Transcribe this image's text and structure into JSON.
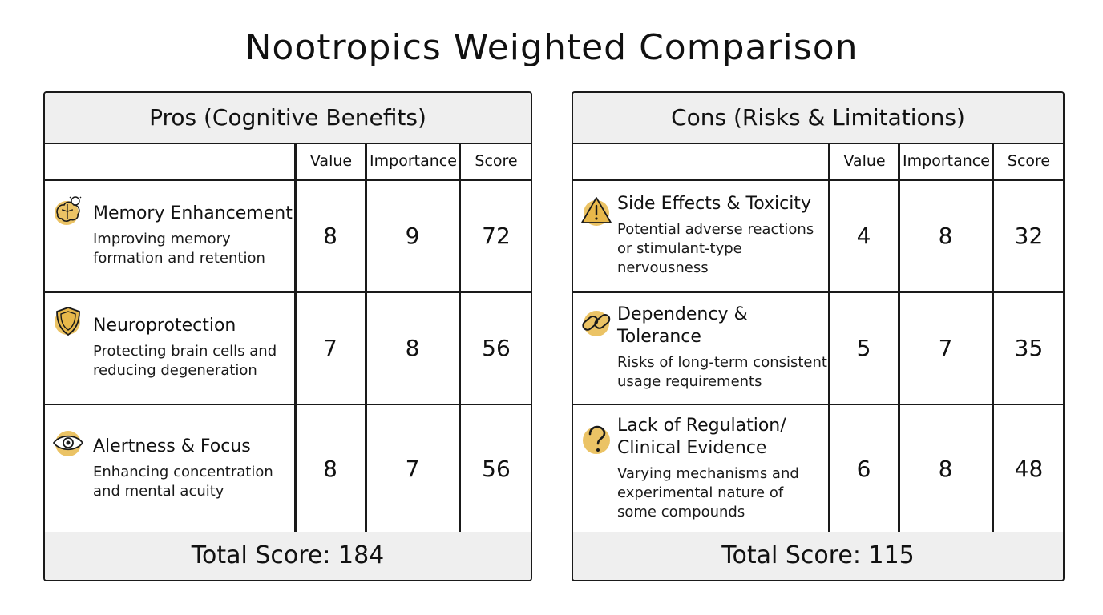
{
  "title": "Nootropics Weighted Comparison",
  "accent_color": "#E8B84A",
  "columns": {
    "value": "Value",
    "importance": "Importance",
    "score": "Score"
  },
  "pros": {
    "header": "Pros (Cognitive Benefits)",
    "rows": [
      {
        "icon": "brain-lightbulb-icon",
        "title": "Memory Enhancement",
        "desc": [
          "Improving memory",
          "formation and retention"
        ],
        "value": "8",
        "importance": "9",
        "score": "72"
      },
      {
        "icon": "shield-icon",
        "title": "Neuroprotection",
        "desc": [
          "Protecting brain cells and",
          "reducing degeneration"
        ],
        "value": "7",
        "importance": "8",
        "score": "56"
      },
      {
        "icon": "eye-icon",
        "title": "Alertness & Focus",
        "desc": [
          "Enhancing concentration",
          "and mental acuity"
        ],
        "value": "8",
        "importance": "7",
        "score": "56"
      }
    ],
    "total": "Total Score: 184"
  },
  "cons": {
    "header": "Cons (Risks & Limitations)",
    "rows": [
      {
        "icon": "warning-icon",
        "title": "Side Effects & Toxicity",
        "desc": [
          "Potential adverse reactions",
          "or stimulant-type",
          "nervousness"
        ],
        "value": "4",
        "importance": "8",
        "score": "32"
      },
      {
        "icon": "chain-link-icon",
        "title": "Dependency & Tolerance",
        "desc": [
          "Risks of long-term consistent",
          "usage requirements"
        ],
        "value": "5",
        "importance": "7",
        "score": "35"
      },
      {
        "icon": "question-mark-icon",
        "title": "Lack of Regulation/ Clinical Evidence",
        "title_lines": [
          "Lack of Regulation/",
          "Clinical Evidence"
        ],
        "desc": [
          "Varying mechanisms and",
          "experimental nature of",
          "some compounds"
        ],
        "value": "6",
        "importance": "8",
        "score": "48"
      }
    ],
    "total": "Total Score: 115"
  }
}
